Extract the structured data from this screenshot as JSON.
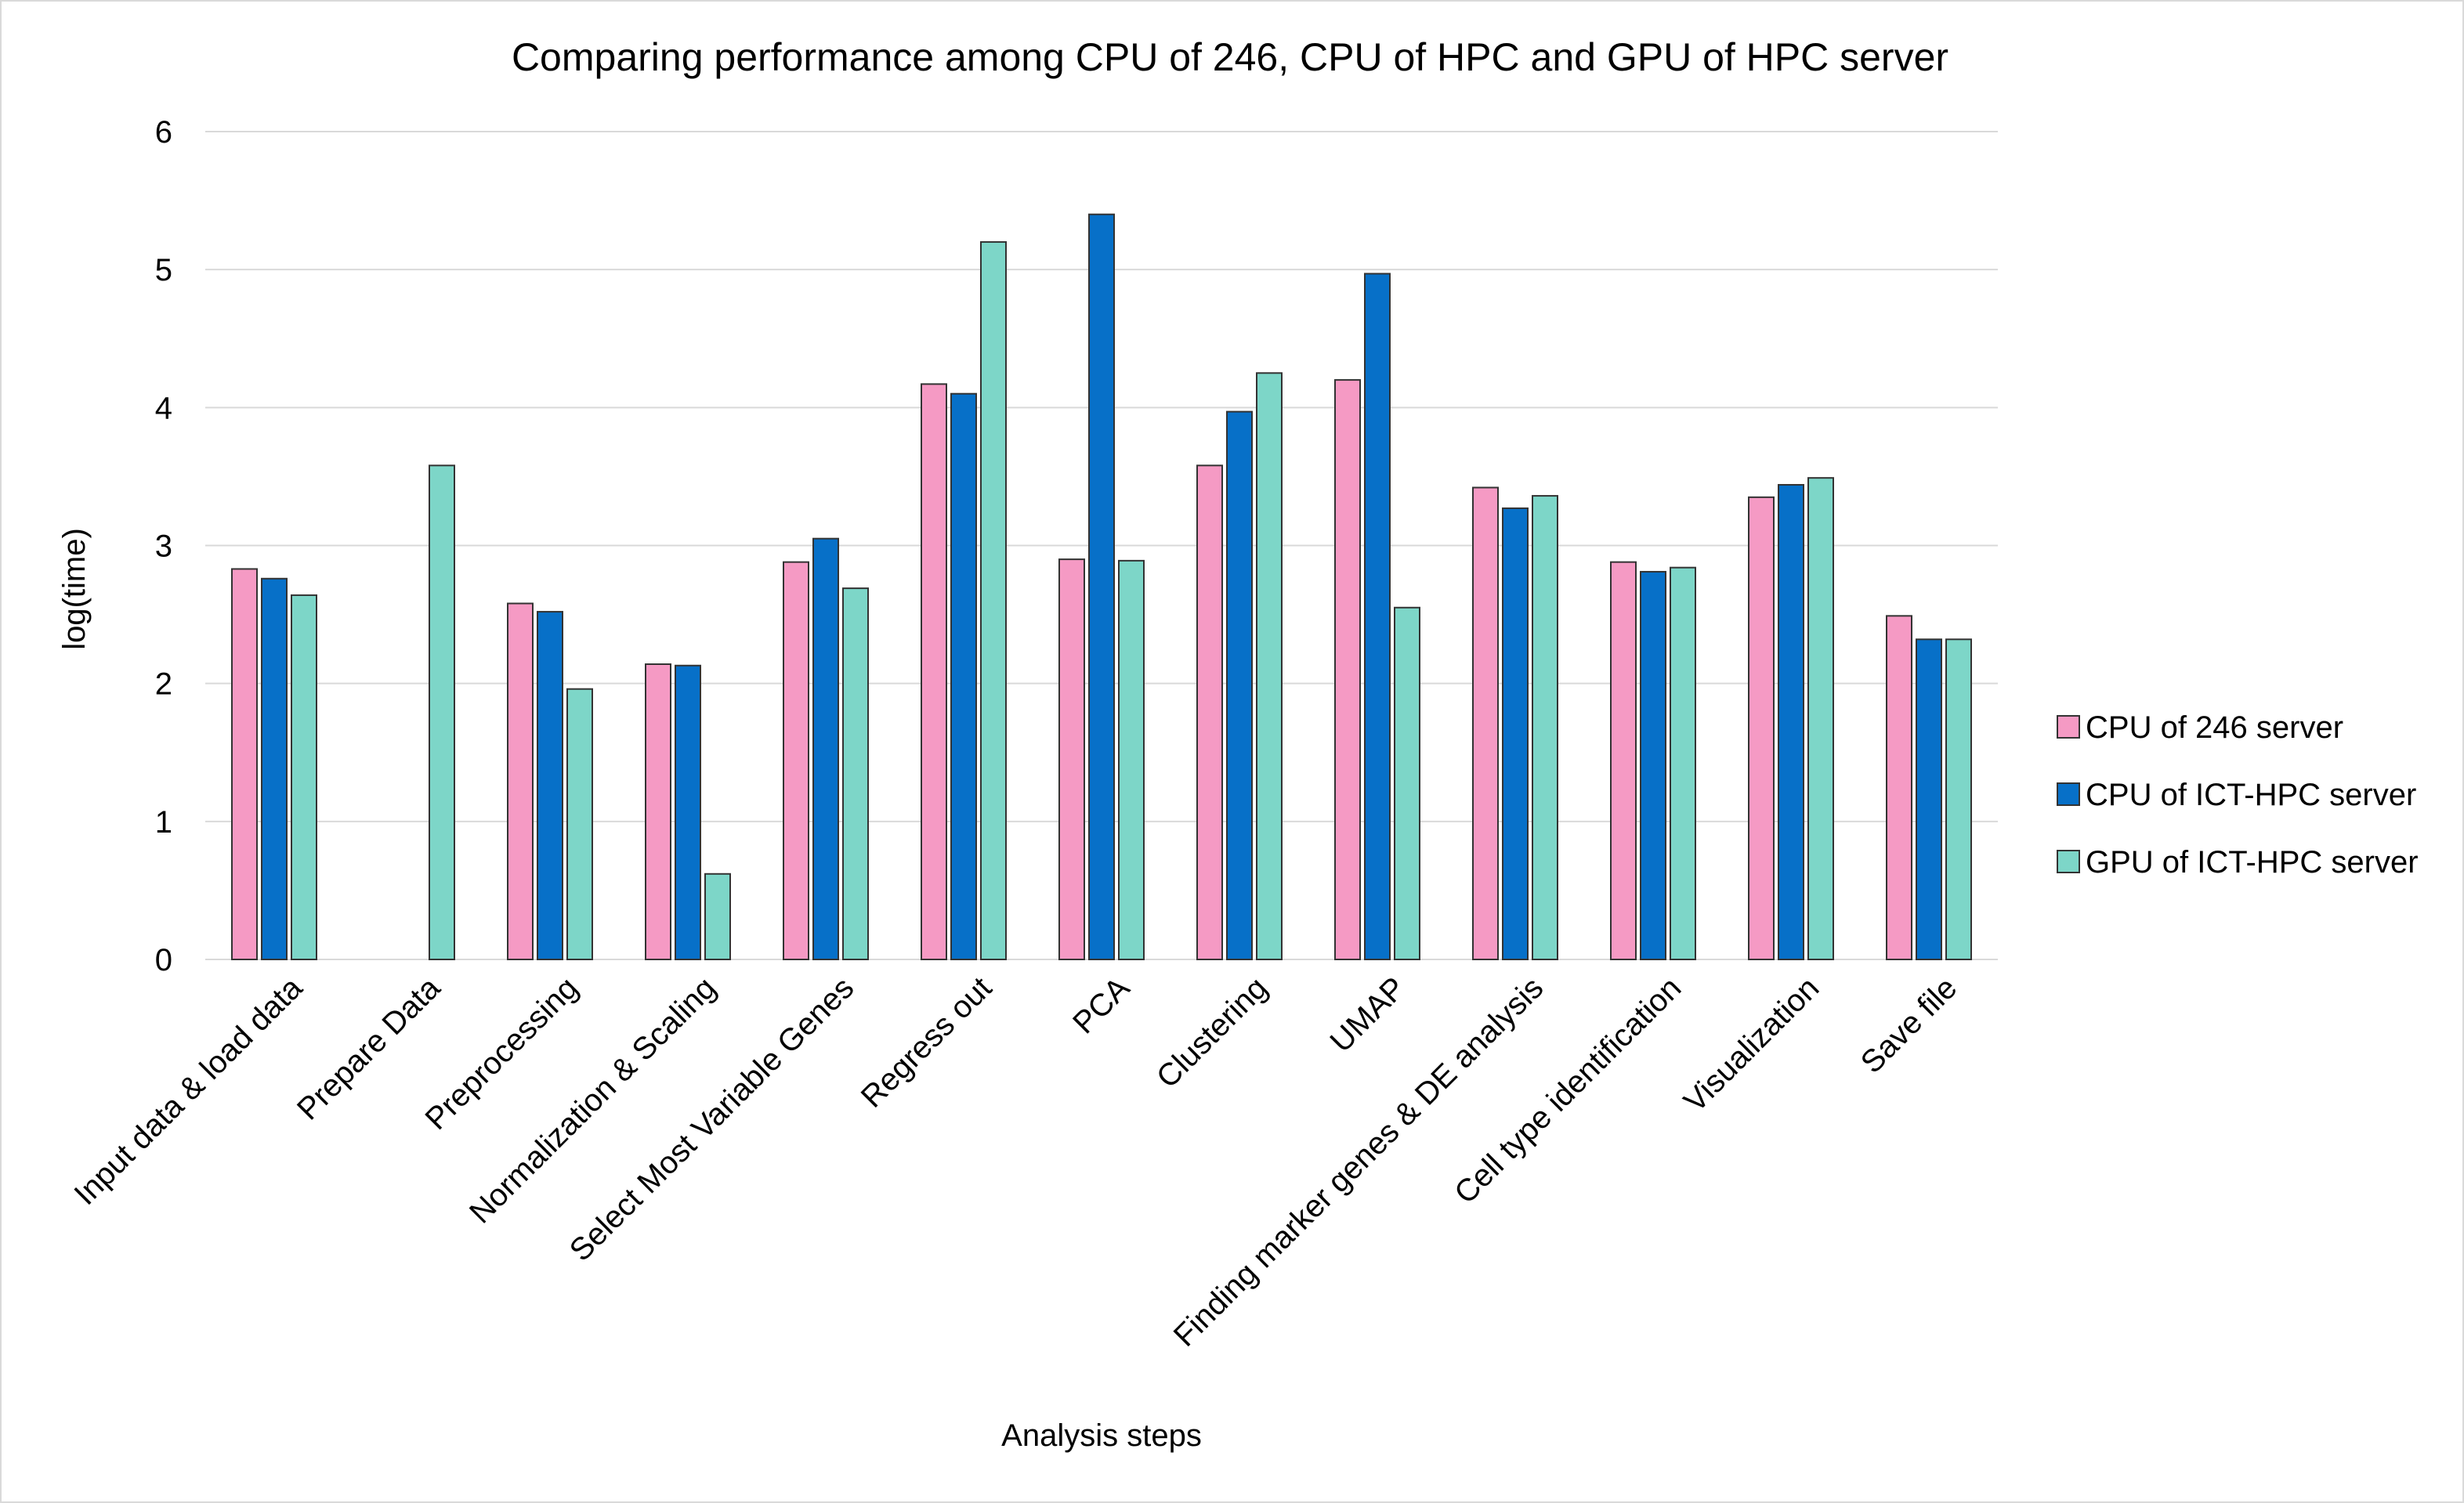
{
  "chart_data": {
    "type": "bar",
    "title": "Comparing performance among CPU of 246, CPU of HPC and GPU of HPC server",
    "xlabel": "Analysis steps",
    "ylabel": "log(time)",
    "ylim": [
      0,
      6
    ],
    "yticks": [
      "0",
      "1",
      "2",
      "3",
      "4",
      "5",
      "6"
    ],
    "grid": true,
    "legend_position": "right",
    "categories": [
      "Input data & load data",
      "Prepare Data",
      "Preprocessing",
      "Normalization & Scaling",
      "Select Most Variable Genes",
      "Regress out",
      "PCA",
      "Clustering",
      "UMAP",
      "Finding marker genes & DE analysis",
      "Cell type identification",
      "Visualization",
      "Save file"
    ],
    "series": [
      {
        "name": "CPU of 246 server",
        "color": "#f59ac4",
        "values": [
          2.83,
          null,
          2.58,
          2.14,
          2.88,
          4.17,
          2.9,
          3.58,
          4.2,
          3.42,
          2.88,
          3.35,
          2.49
        ]
      },
      {
        "name": "CPU of ICT-HPC server",
        "color": "#0770c8",
        "values": [
          2.76,
          null,
          2.52,
          2.13,
          3.05,
          4.1,
          5.4,
          3.97,
          4.97,
          3.27,
          2.81,
          3.44,
          2.32
        ]
      },
      {
        "name": "GPU of ICT-HPC server",
        "color": "#7dd6c8",
        "values": [
          2.64,
          3.58,
          1.96,
          0.62,
          2.69,
          5.2,
          2.89,
          4.25,
          2.55,
          3.36,
          2.84,
          3.49,
          2.32
        ]
      }
    ]
  }
}
